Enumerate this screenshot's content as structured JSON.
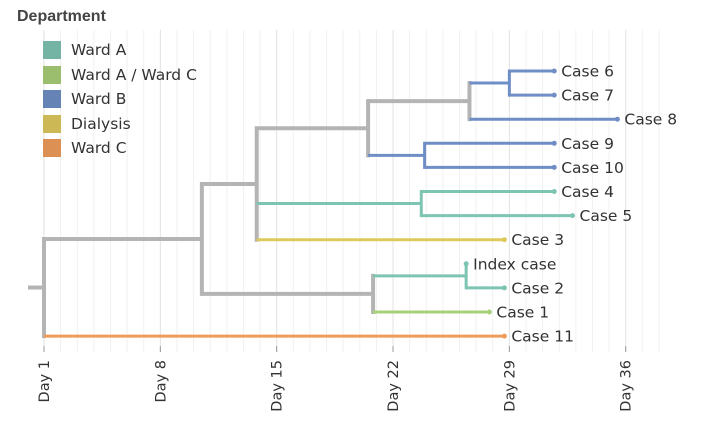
{
  "legend": {
    "title": "Department",
    "items": [
      {
        "label": "Ward A",
        "color": "#7ec4b2"
      },
      {
        "label": "Ward A / Ward C",
        "color": "#a9cf78"
      },
      {
        "label": "Ward B",
        "color": "#6f8ec6"
      },
      {
        "label": "Dialysis",
        "color": "#dec95c"
      },
      {
        "label": "Ward C",
        "color": "#ef9c5a"
      }
    ]
  },
  "axis": {
    "ticks": [
      {
        "day": 1,
        "label": "Day 1"
      },
      {
        "day": 8,
        "label": "Day 8"
      },
      {
        "day": 15,
        "label": "Day 15"
      },
      {
        "day": 22,
        "label": "Day 22"
      },
      {
        "day": 29,
        "label": "Day 29"
      },
      {
        "day": 36,
        "label": "Day 36"
      }
    ]
  },
  "tree": {
    "dept": "internal",
    "children": [
      {
        "day": 10.5,
        "dept": "internal",
        "children": [
          {
            "day": 13.8,
            "dept": "internal",
            "children": [
              {
                "day": 20.5,
                "dept": "internal",
                "children": [
                  {
                    "day": 26.6,
                    "dept": "internal",
                    "children": [
                      {
                        "day": 29,
                        "dept": "Ward B",
                        "children": [
                          {
                            "name": "Case 6",
                            "day": 31.7,
                            "dept": "Ward B"
                          },
                          {
                            "name": "Case 7",
                            "day": 31.7,
                            "dept": "Ward B"
                          }
                        ]
                      },
                      {
                        "name": "Case 8",
                        "day": 35.5,
                        "dept": "Ward B"
                      }
                    ]
                  },
                  {
                    "day": 23.9,
                    "dept": "Ward B",
                    "children": [
                      {
                        "name": "Case 9",
                        "day": 31.7,
                        "dept": "Ward B"
                      },
                      {
                        "name": "Case 10",
                        "day": 31.7,
                        "dept": "Ward B"
                      }
                    ]
                  }
                ]
              },
              {
                "day": 23.7,
                "dept": "Ward A",
                "children": [
                  {
                    "name": "Case 4",
                    "day": 31.7,
                    "dept": "Ward A"
                  },
                  {
                    "name": "Case 5",
                    "day": 32.8,
                    "dept": "Ward A"
                  }
                ]
              },
              {
                "name": "Case 3",
                "day": 28.7,
                "dept": "Dialysis"
              }
            ]
          },
          {
            "day": 20.8,
            "dept": "internal",
            "children": [
              {
                "day": 26.4,
                "dept": "Ward A",
                "children": [
                  {
                    "name": "Index case",
                    "day": 26.4,
                    "dept": "Ward A"
                  },
                  {
                    "name": "Case 2",
                    "day": 28.7,
                    "dept": "Ward A"
                  }
                ]
              },
              {
                "name": "Case 1",
                "day": 27.8,
                "dept": "Ward A / Ward C"
              }
            ]
          }
        ]
      },
      {
        "name": "Case 11",
        "day": 28.7,
        "dept": "Ward C"
      }
    ]
  }
}
